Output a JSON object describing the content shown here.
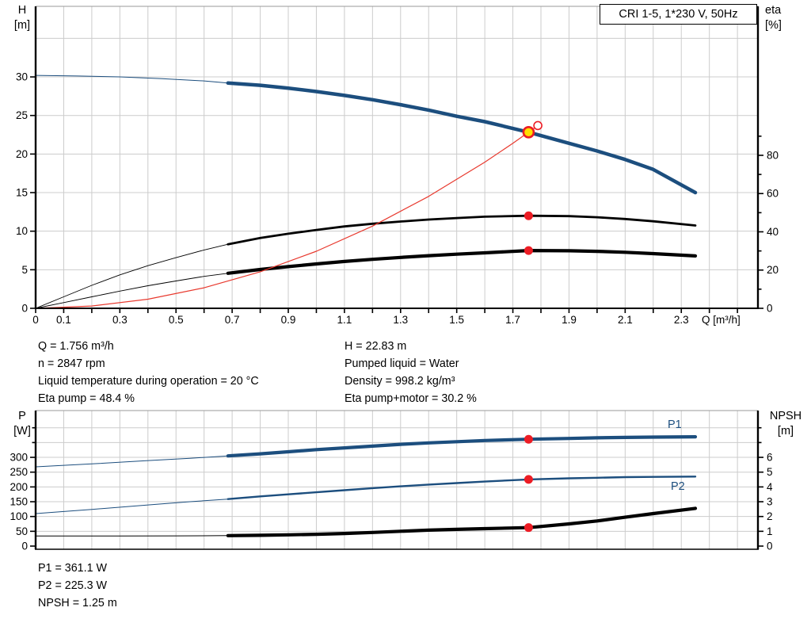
{
  "title_box": {
    "text": "CRI 1-5, 1*230 V, 50Hz"
  },
  "colors": {
    "curve_blue": "#1c4e7e",
    "curve_black": "#000000",
    "system_red": "#e8392e",
    "dot_red": "#ec1c24",
    "dot_yellow": "#ffdf00",
    "grid": "#cccccc",
    "axis": "#000000",
    "border_gray": "#9a9a9a",
    "label_blue": "#1c4e7e"
  },
  "curve_labels": {
    "p1": "P1",
    "p2": "P2"
  },
  "duty_info": {
    "left": [
      "Q = 1.756 m³/h",
      "n = 2847 rpm",
      "Liquid temperature during operation = 20 °C",
      "Eta pump = 48.4 %"
    ],
    "right": [
      "H = 22.83 m",
      "Pumped liquid = Water",
      "Density = 998.2 kg/m³",
      "Eta pump+motor = 30.2 %"
    ],
    "bottom": [
      "P1 = 361.1 W",
      "P2 = 225.3 W",
      "NPSH = 1.25 m"
    ]
  },
  "chart_data": [
    {
      "type": "line",
      "name": "qh-efficiency-chart",
      "x_axis": {
        "label": "Q [m³/h]",
        "min": 0,
        "max": 2.573,
        "tick_step": 0.1,
        "tick_max": 2.5,
        "labeled": [
          0,
          0.1,
          0.3,
          0.5,
          0.7,
          0.9,
          1.1,
          1.3,
          1.5,
          1.7,
          1.9,
          2.1,
          2.3
        ],
        "show_ticks": true
      },
      "y_left": {
        "name": "H",
        "unit": "[m]",
        "min": 0,
        "max": 39.15,
        "tick_step": 5,
        "tick_max": 30,
        "labeled": [
          0,
          5,
          10,
          15,
          20,
          25,
          30
        ],
        "grid_step": 5,
        "grid_min": 5,
        "grid_max": 35
      },
      "y_right": {
        "name": "eta",
        "unit": "[%]",
        "min": 0,
        "max": 157.9,
        "tick_step": 10,
        "tick_max": 90,
        "labeled": [
          0,
          20,
          40,
          60,
          80
        ]
      },
      "series": [
        {
          "name": "h-curve",
          "label": "H pump curve",
          "axis": "left",
          "color_key": "curve_blue",
          "thin": 1,
          "thick": 4.5,
          "split": 0.685,
          "points": [
            [
              0,
              30.2
            ],
            [
              0.15,
              30.12
            ],
            [
              0.3,
              30.0
            ],
            [
              0.45,
              29.78
            ],
            [
              0.6,
              29.48
            ],
            [
              0.685,
              29.2
            ],
            [
              0.8,
              28.92
            ],
            [
              0.9,
              28.55
            ],
            [
              1.0,
              28.1
            ],
            [
              1.1,
              27.6
            ],
            [
              1.2,
              27.05
            ],
            [
              1.3,
              26.4
            ],
            [
              1.4,
              25.7
            ],
            [
              1.5,
              24.9
            ],
            [
              1.6,
              24.2
            ],
            [
              1.756,
              22.83
            ],
            [
              1.85,
              21.9
            ],
            [
              2.0,
              20.4
            ],
            [
              2.1,
              19.3
            ],
            [
              2.2,
              18.0
            ],
            [
              2.35,
              15.0
            ]
          ]
        },
        {
          "name": "eta-pump-curve",
          "label": "Eta pump",
          "axis": "right",
          "color_key": "curve_black",
          "thin": 0.9,
          "thick": 2.8,
          "split": 0.685,
          "points": [
            [
              0,
              0
            ],
            [
              0.1,
              6
            ],
            [
              0.2,
              12
            ],
            [
              0.3,
              17.5
            ],
            [
              0.4,
              22.3
            ],
            [
              0.5,
              26.5
            ],
            [
              0.6,
              30.5
            ],
            [
              0.685,
              33.5
            ],
            [
              0.8,
              36.8
            ],
            [
              0.9,
              39
            ],
            [
              1.0,
              41
            ],
            [
              1.1,
              42.8
            ],
            [
              1.2,
              44.2
            ],
            [
              1.3,
              45.4
            ],
            [
              1.4,
              46.4
            ],
            [
              1.5,
              47.2
            ],
            [
              1.6,
              47.9
            ],
            [
              1.756,
              48.4
            ],
            [
              1.9,
              48.2
            ],
            [
              2.0,
              47.6
            ],
            [
              2.1,
              46.7
            ],
            [
              2.2,
              45.5
            ],
            [
              2.35,
              43.3
            ]
          ]
        },
        {
          "name": "eta-pump-motor-curve",
          "label": "Eta pump+motor",
          "axis": "right",
          "color_key": "curve_black",
          "thin": 0.9,
          "thick": 4.2,
          "split": 0.685,
          "points": [
            [
              0,
              0
            ],
            [
              0.1,
              3
            ],
            [
              0.2,
              6
            ],
            [
              0.3,
              9
            ],
            [
              0.4,
              11.8
            ],
            [
              0.5,
              14.3
            ],
            [
              0.6,
              16.7
            ],
            [
              0.685,
              18.3
            ],
            [
              0.8,
              20.3
            ],
            [
              0.9,
              21.8
            ],
            [
              1.0,
              23.2
            ],
            [
              1.1,
              24.5
            ],
            [
              1.2,
              25.6
            ],
            [
              1.3,
              26.6
            ],
            [
              1.4,
              27.5
            ],
            [
              1.5,
              28.3
            ],
            [
              1.6,
              29.0
            ],
            [
              1.756,
              30.2
            ],
            [
              1.9,
              30.1
            ],
            [
              2.0,
              29.8
            ],
            [
              2.1,
              29.3
            ],
            [
              2.2,
              28.6
            ],
            [
              2.35,
              27.4
            ]
          ]
        },
        {
          "name": "system-curve",
          "label": "System curve",
          "axis": "left",
          "color_key": "system_red",
          "thin": 1.2,
          "thick": 1.2,
          "split": null,
          "points": [
            [
              0,
              0
            ],
            [
              0.2,
              0.3
            ],
            [
              0.4,
              1.18
            ],
            [
              0.6,
              2.66
            ],
            [
              0.8,
              4.74
            ],
            [
              1.0,
              7.4
            ],
            [
              1.2,
              10.66
            ],
            [
              1.4,
              14.51
            ],
            [
              1.6,
              18.95
            ],
            [
              1.7,
              21.39
            ],
            [
              1.789,
              23.69
            ]
          ]
        }
      ],
      "markers": [
        {
          "name": "eta-pump-duty-dot",
          "type": "dot",
          "axis": "right",
          "x": 1.756,
          "y": 48.4
        },
        {
          "name": "eta-pump-motor-duty-dot",
          "type": "dot",
          "axis": "right",
          "x": 1.756,
          "y": 30.2
        },
        {
          "name": "operating-point",
          "type": "op",
          "axis": "left",
          "x": 1.756,
          "y": 22.83
        },
        {
          "name": "rated-duty-point",
          "type": "open",
          "axis": "left",
          "x": 1.789,
          "y": 23.69
        }
      ]
    },
    {
      "type": "line",
      "name": "power-npsh-chart",
      "x_axis": {
        "label": "",
        "min": 0,
        "max": 2.573,
        "tick_step": 0.1,
        "tick_max": 2.5,
        "labeled": [],
        "show_ticks": false
      },
      "y_left": {
        "name": "P",
        "unit": "[W]",
        "min": -10.7,
        "max": 458.2,
        "tick_step": 50,
        "tick_max": 400,
        "labeled": [
          0,
          50,
          100,
          150,
          200,
          250,
          300
        ],
        "grid_step": 50,
        "grid_min": 50,
        "grid_max": 400
      },
      "y_right": {
        "name": "NPSH",
        "unit": "[m]",
        "min": -0.214,
        "max": 9.164,
        "tick_step": 1,
        "tick_max": 8,
        "labeled": [
          0,
          1,
          2,
          3,
          4,
          5,
          6
        ]
      },
      "series": [
        {
          "name": "p1-curve",
          "label": "P1",
          "axis": "left",
          "color_key": "curve_blue",
          "thin": 1,
          "thick": 4.2,
          "split": 0.685,
          "points": [
            [
              0,
              268
            ],
            [
              0.2,
              278
            ],
            [
              0.4,
              289
            ],
            [
              0.55,
              297
            ],
            [
              0.685,
              305
            ],
            [
              0.8,
              312
            ],
            [
              0.9,
              319
            ],
            [
              1.0,
              326
            ],
            [
              1.1,
              332
            ],
            [
              1.2,
              338
            ],
            [
              1.3,
              344
            ],
            [
              1.4,
              349
            ],
            [
              1.5,
              353
            ],
            [
              1.6,
              357
            ],
            [
              1.756,
              361.1
            ],
            [
              1.9,
              364
            ],
            [
              2.0,
              366
            ],
            [
              2.1,
              367.5
            ],
            [
              2.2,
              368.5
            ],
            [
              2.35,
              369.5
            ]
          ]
        },
        {
          "name": "p2-curve",
          "label": "P2",
          "axis": "left",
          "color_key": "curve_blue",
          "thin": 1,
          "thick": 2.4,
          "split": 0.685,
          "points": [
            [
              0,
              110
            ],
            [
              0.2,
              124
            ],
            [
              0.4,
              139
            ],
            [
              0.55,
              150
            ],
            [
              0.685,
              159
            ],
            [
              0.8,
              168
            ],
            [
              0.9,
              175
            ],
            [
              1.0,
              182
            ],
            [
              1.1,
              189
            ],
            [
              1.2,
              196
            ],
            [
              1.3,
              202
            ],
            [
              1.4,
              208
            ],
            [
              1.5,
              213
            ],
            [
              1.6,
              218
            ],
            [
              1.756,
              225.3
            ],
            [
              1.9,
              229
            ],
            [
              2.0,
              231
            ],
            [
              2.1,
              233
            ],
            [
              2.2,
              234
            ],
            [
              2.35,
              235
            ]
          ]
        },
        {
          "name": "npsh-curve",
          "label": "NPSH",
          "axis": "right",
          "color_key": "curve_black",
          "thin": 1,
          "thick": 4.2,
          "split": 0.685,
          "points": [
            [
              0,
              0.68
            ],
            [
              0.3,
              0.68
            ],
            [
              0.5,
              0.69
            ],
            [
              0.685,
              0.71
            ],
            [
              0.8,
              0.73
            ],
            [
              0.9,
              0.76
            ],
            [
              1.0,
              0.8
            ],
            [
              1.1,
              0.85
            ],
            [
              1.2,
              0.92
            ],
            [
              1.3,
              1.0
            ],
            [
              1.4,
              1.08
            ],
            [
              1.5,
              1.13
            ],
            [
              1.6,
              1.18
            ],
            [
              1.756,
              1.25
            ],
            [
              1.9,
              1.5
            ],
            [
              2.0,
              1.7
            ],
            [
              2.1,
              1.95
            ],
            [
              2.2,
              2.2
            ],
            [
              2.35,
              2.55
            ]
          ]
        }
      ],
      "markers": [
        {
          "name": "p1-duty-dot",
          "type": "dot",
          "axis": "left",
          "x": 1.756,
          "y": 361.1
        },
        {
          "name": "p2-duty-dot",
          "type": "dot",
          "axis": "left",
          "x": 1.756,
          "y": 225.3
        },
        {
          "name": "npsh-duty-dot",
          "type": "dot",
          "axis": "right",
          "x": 1.756,
          "y": 1.25
        }
      ]
    }
  ]
}
